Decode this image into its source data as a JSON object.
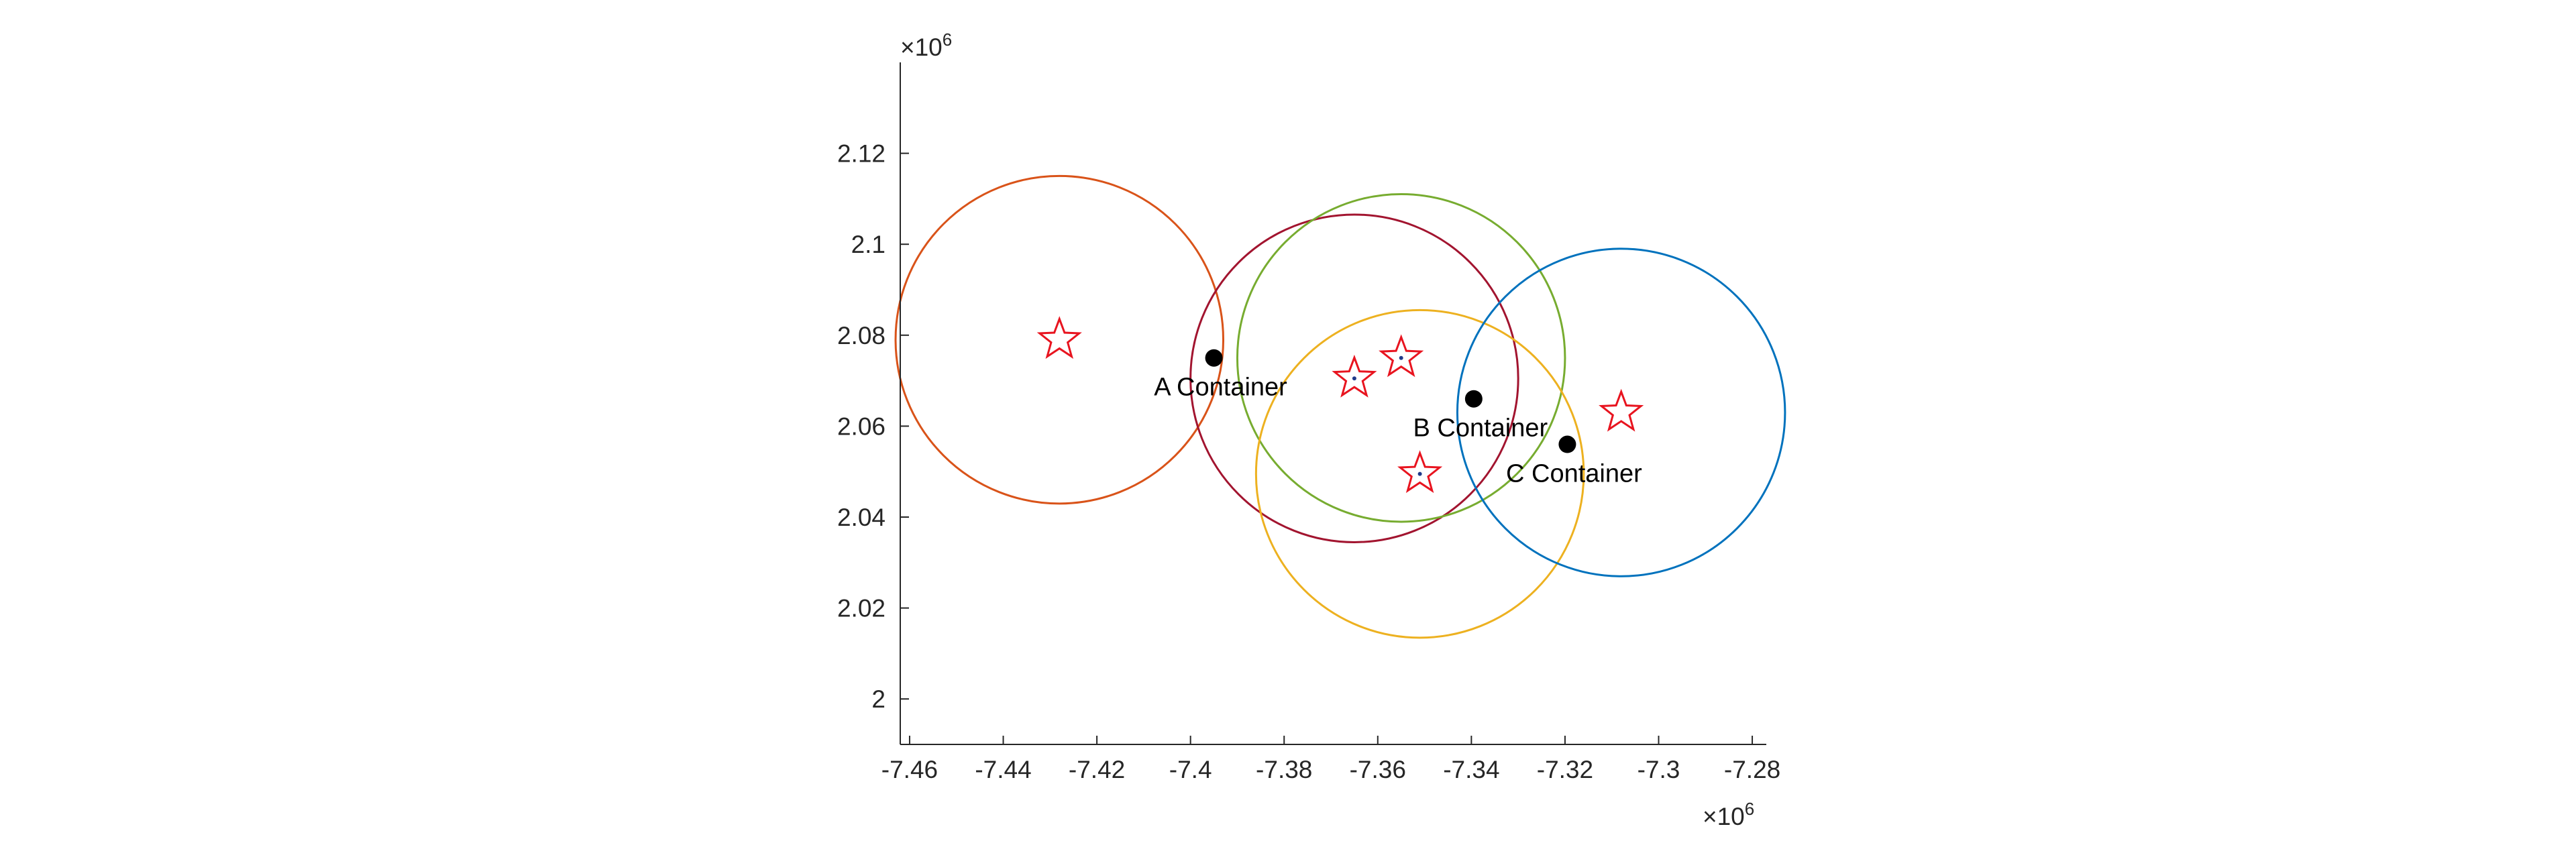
{
  "chart_data": {
    "type": "scatter",
    "title": "",
    "xlabel": "",
    "ylabel": "",
    "xlim": [
      -7.462,
      -7.277
    ],
    "ylim": [
      1.99,
      2.14
    ],
    "x_ticks": [
      -7.46,
      -7.44,
      -7.42,
      -7.4,
      -7.38,
      -7.36,
      -7.34,
      -7.32,
      -7.3,
      -7.28
    ],
    "y_ticks": [
      2,
      2.02,
      2.04,
      2.06,
      2.08,
      2.1,
      2.12
    ],
    "x_tick_labels": [
      "-7.46",
      "-7.44",
      "-7.42",
      "-7.4",
      "-7.38",
      "-7.36",
      "-7.34",
      "-7.32",
      "-7.3",
      "-7.28"
    ],
    "y_tick_labels": [
      "2",
      "2.02",
      "2.04",
      "2.06",
      "2.08",
      "2.1",
      "2.12"
    ],
    "x_exponent": {
      "base": "×10",
      "power": "6"
    },
    "y_exponent": {
      "base": "×10",
      "power": "6"
    },
    "grid": false,
    "circles": [
      {
        "cx": -7.428,
        "cy": 2.079,
        "r": 0.035,
        "color": "#D95319"
      },
      {
        "cx": -7.365,
        "cy": 2.0705,
        "r": 0.035,
        "color": "#A2142F"
      },
      {
        "cx": -7.355,
        "cy": 2.075,
        "r": 0.035,
        "color": "#77AC30"
      },
      {
        "cx": -7.351,
        "cy": 2.0495,
        "r": 0.035,
        "color": "#EDB120"
      },
      {
        "cx": -7.308,
        "cy": 2.063,
        "r": 0.035,
        "color": "#0072BD"
      }
    ],
    "star_markers": {
      "color": "#E8141F",
      "points": [
        {
          "x": -7.428,
          "y": 2.079
        },
        {
          "x": -7.365,
          "y": 2.0705
        },
        {
          "x": -7.355,
          "y": 2.075
        },
        {
          "x": -7.351,
          "y": 2.0495
        },
        {
          "x": -7.308,
          "y": 2.063
        }
      ]
    },
    "center_dots": {
      "color": "#1F3A8A",
      "points": [
        {
          "x": -7.365,
          "y": 2.0705
        },
        {
          "x": -7.355,
          "y": 2.075
        },
        {
          "x": -7.351,
          "y": 2.0495
        }
      ]
    },
    "containers": [
      {
        "x": -7.395,
        "y": 2.075,
        "label": "A Container"
      },
      {
        "x": -7.3395,
        "y": 2.066,
        "label": "B Container"
      },
      {
        "x": -7.3195,
        "y": 2.056,
        "label": "C Container"
      }
    ]
  }
}
